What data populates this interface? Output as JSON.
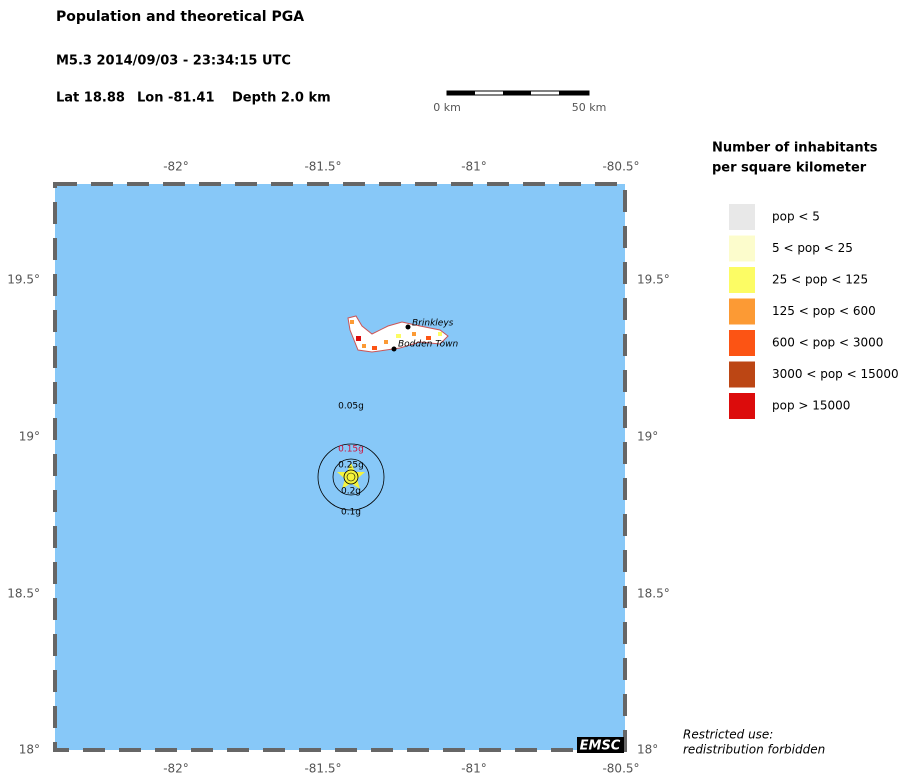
{
  "header": {
    "title": "Population and theoretical PGA",
    "event": "M5.3  2014/09/03 - 23:34:15 UTC",
    "lat": "Lat 18.88",
    "lon": "Lon -81.41",
    "depth": "Depth  2.0 km"
  },
  "scale_bar": {
    "start": "0 km",
    "end": "50 km"
  },
  "map": {
    "lon_labels": [
      "-82°",
      "-81.5°",
      "-81°",
      "-80.5°"
    ],
    "lat_labels": [
      "19.5°",
      "19°",
      "18.5°",
      "18°"
    ],
    "places": [
      "Brinkleys",
      "Bodden Town"
    ],
    "pga_contours": [
      "0.05g",
      "0.15g",
      "0.25g",
      "0.2g",
      "0.1g"
    ],
    "logo": "EMSC"
  },
  "legend": {
    "title_lines": [
      "Number of inhabitants",
      "per square kilometer"
    ],
    "items": [
      {
        "label": "pop < 5",
        "color": "#e8e8e8"
      },
      {
        "label": "5 < pop < 25",
        "color": "#fcfccc"
      },
      {
        "label": "25 < pop < 125",
        "color": "#fcfc64"
      },
      {
        "label": "125 < pop < 600",
        "color": "#fc9a34"
      },
      {
        "label": "600 < pop < 3000",
        "color": "#fc5414"
      },
      {
        "label": "3000 < pop < 15000",
        "color": "#bc4614"
      },
      {
        "label": "pop > 15000",
        "color": "#dc0c0c"
      }
    ]
  },
  "footer": [
    "Restricted use:",
    "redistribution forbidden"
  ]
}
